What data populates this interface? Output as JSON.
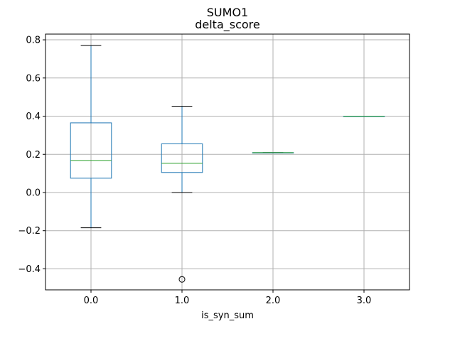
{
  "chart_data": {
    "type": "box",
    "suptitle": "SUMO1",
    "title": "delta_score",
    "xlabel": "is_syn_sum",
    "ylabel": "",
    "categories": [
      "0.0",
      "1.0",
      "2.0",
      "3.0"
    ],
    "ylim": [
      -0.51,
      0.83
    ],
    "yticks": [
      -0.4,
      -0.2,
      0.0,
      0.2,
      0.4,
      0.6,
      0.8
    ],
    "ytick_labels": [
      "−0.4",
      "−0.2",
      "0.0",
      "0.2",
      "0.4",
      "0.6",
      "0.8"
    ],
    "grid": true,
    "colors": {
      "box": "#1f77b4",
      "median": "#2ca02c",
      "whisker_cap": "#000000",
      "grid": "#b0b0b0"
    },
    "boxes": [
      {
        "category": "0.0",
        "whisker_low": -0.185,
        "q1": 0.075,
        "median": 0.168,
        "q3": 0.365,
        "whisker_high": 0.77,
        "outliers": []
      },
      {
        "category": "1.0",
        "whisker_low": 0.0,
        "q1": 0.105,
        "median": 0.153,
        "q3": 0.255,
        "whisker_high": 0.452,
        "outliers": [
          -0.455
        ]
      },
      {
        "category": "2.0",
        "whisker_low": 0.209,
        "q1": 0.209,
        "median": 0.209,
        "q3": 0.209,
        "whisker_high": 0.209,
        "outliers": []
      },
      {
        "category": "3.0",
        "whisker_low": 0.4,
        "q1": 0.4,
        "median": 0.4,
        "q3": 0.4,
        "whisker_high": 0.4,
        "outliers": []
      }
    ]
  }
}
